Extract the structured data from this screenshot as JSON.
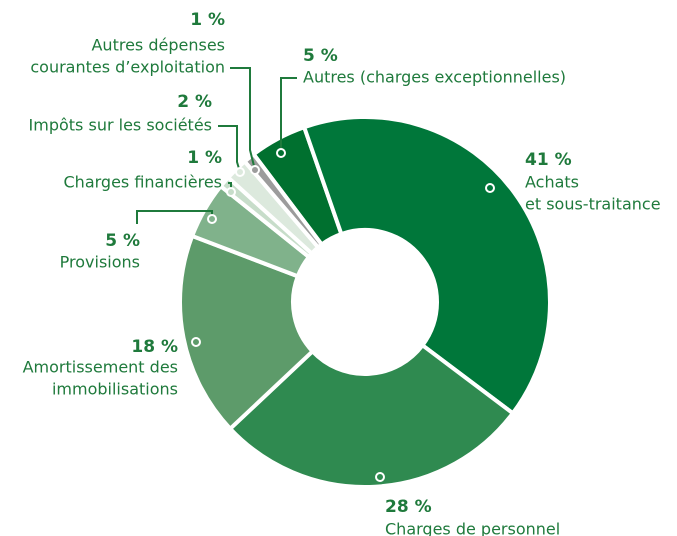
{
  "chart_data": {
    "type": "donut",
    "categories": [
      [
        "Autres (charges exceptionnelles)"
      ],
      [
        "Achats",
        "et sous-traitance"
      ],
      [
        "Charges de personnel"
      ],
      [
        "Amortissement des",
        "immobilisations"
      ],
      [
        "Provisions"
      ],
      [
        "Charges financières"
      ],
      [
        "Impôts sur les sociétés"
      ],
      [
        "Autres dépenses",
        "courantes d’exploitation"
      ]
    ],
    "values": [
      5,
      41,
      28,
      18,
      5,
      1,
      2,
      1
    ],
    "value_labels": [
      "5 %",
      "41 %",
      "28 %",
      "18 %",
      "5 %",
      "1 %",
      "2 %",
      "1 %"
    ],
    "colors": [
      "#00702f",
      "#00773a",
      "#2f8a50",
      "#5d9b6a",
      "#80b28b",
      "#c7ddca",
      "#dce9dd",
      "#9c9c9c"
    ]
  }
}
